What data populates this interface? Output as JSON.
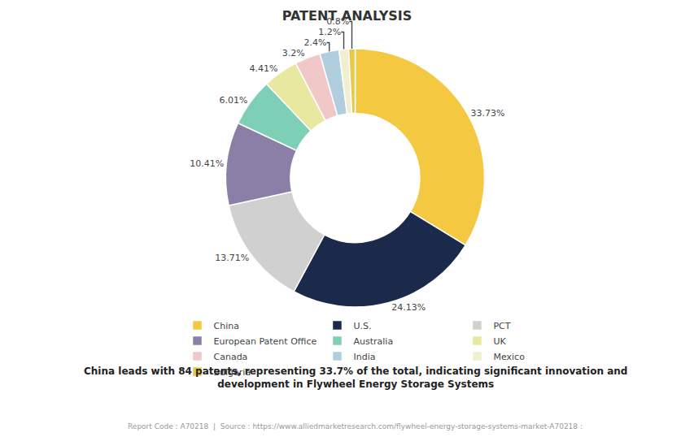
{
  "chart_data": {
    "type": "donut",
    "title": "PATENT ANALYSIS",
    "subtitle": [
      "China leads with 84 patents, representing 33.7% of the total, indicating significant innovation and",
      "development in Flywheel Energy Storage Systems"
    ],
    "annotations": [
      "Report Code : A70218  |  Source : https://www.alliedmarketresearch.com/flywheel-energy-storage-systems-market-A70218 :"
    ],
    "categories": [
      "China",
      "U.S.",
      "PCT",
      "European Patent Office",
      "Australia",
      "UK",
      "Canada",
      "India",
      "Mexico",
      "Bulgaria"
    ],
    "values": [
      33.73,
      24.13,
      13.71,
      10.41,
      6.01,
      4.41,
      3.2,
      2.4,
      1.2,
      0.8
    ],
    "value_labels": [
      "33.73%",
      "24.13%",
      "13.71%",
      "10.41%",
      "6.01%",
      "4.41%",
      "3.2%",
      "2.4%",
      "1.2%",
      "0.8%"
    ],
    "colors": [
      "#F5C842",
      "#1B2A4A",
      "#D0D0D0",
      "#8B7FA8",
      "#7DCFB6",
      "#E8E8A0",
      "#F0C8C8",
      "#B0CEDE",
      "#F0F0D0",
      "#E8C84A"
    ],
    "data_labels": true,
    "legend": "bottom"
  }
}
